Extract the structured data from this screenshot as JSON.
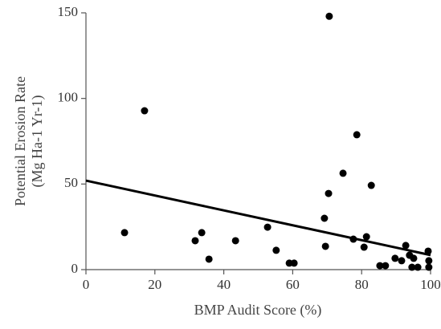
{
  "chart_data": {
    "type": "scatter",
    "x_label": "BMP Audit Score (%)",
    "y_label": [
      "Potential Erosion Rate",
      "(Mg Ha-1 Yr-1)"
    ],
    "x": [
      11.2,
      17.0,
      31.7,
      33.6,
      35.7,
      43.4,
      52.7,
      55.2,
      59.0,
      60.4,
      69.2,
      69.5,
      70.4,
      70.6,
      74.6,
      77.6,
      78.6,
      80.7,
      81.4,
      82.8,
      85.3,
      86.9,
      89.7,
      91.6,
      92.8,
      93.9,
      95.1,
      94.6,
      96.3,
      99.3,
      99.5,
      99.5
    ],
    "values": [
      21.6,
      92.8,
      16.9,
      21.6,
      6.1,
      16.9,
      24.8,
      11.3,
      3.8,
      3.8,
      30.0,
      13.6,
      44.5,
      148,
      56.3,
      17.8,
      78.8,
      13.1,
      19.2,
      49.2,
      2.3,
      2.3,
      6.6,
      5.2,
      14.1,
      8.4,
      6.6,
      1.4,
      1.4,
      10.8,
      5.2,
      1.4
    ],
    "color": "#000000",
    "trendline": {
      "x": [
        0,
        100
      ],
      "y": [
        52,
        8.5
      ],
      "color": "#000000"
    },
    "xlim": [
      0,
      100
    ],
    "xticks": [
      0,
      20,
      40,
      60,
      80,
      100
    ],
    "ylim": [
      0,
      150
    ],
    "yticks": [
      0,
      50,
      100,
      150
    ],
    "grid": false
  }
}
